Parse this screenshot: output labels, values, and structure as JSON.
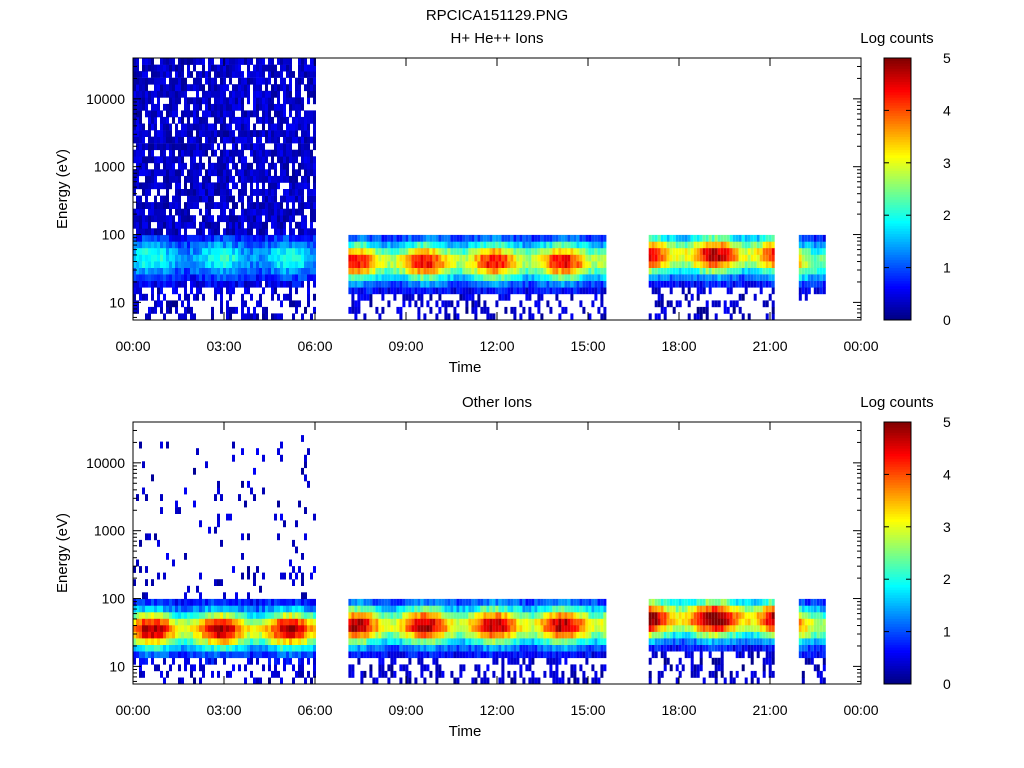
{
  "figure_title": "RPCICA151129.PNG",
  "chart_data": [
    {
      "type": "heatmap",
      "title": "H+ He++ Ions",
      "xlabel": "Time",
      "ylabel": "Energy (eV)",
      "y_scale": "log",
      "ylim": [
        5.5,
        40000
      ],
      "xlim": [
        "00:00",
        "24:00"
      ],
      "x_ticks": [
        "00:00",
        "03:00",
        "06:00",
        "09:00",
        "12:00",
        "15:00",
        "18:00",
        "21:00",
        "00:00"
      ],
      "y_ticks": [
        "10",
        "100",
        "1000",
        "10000"
      ],
      "colorbar": {
        "label": "Log counts",
        "min": 0,
        "max": 5,
        "ticks": [
          "0",
          "1",
          "2",
          "3",
          "4",
          "5"
        ],
        "colormap": "jet"
      },
      "data_segments": [
        {
          "start_hour": 0.0,
          "end_hour": 6.0,
          "energy_range_ev": [
            5.5,
            40000
          ],
          "peak_energy_ev": 45,
          "peak_log_counts": 1.5
        },
        {
          "start_hour": 7.1,
          "end_hour": 15.6,
          "energy_range_ev": [
            6,
            100
          ],
          "peak_energy_ev": 40,
          "peak_log_counts": 3.5
        },
        {
          "start_hour": 17.0,
          "end_hour": 21.1,
          "energy_range_ev": [
            6,
            100
          ],
          "peak_energy_ev": 50,
          "peak_log_counts": 3.8
        },
        {
          "start_hour": 21.95,
          "end_hour": 22.8,
          "energy_range_ev": [
            10,
            100
          ],
          "peak_energy_ev": 40,
          "peak_log_counts": 3.0
        }
      ]
    },
    {
      "type": "heatmap",
      "title": "Other Ions",
      "xlabel": "Time",
      "ylabel": "Energy (eV)",
      "y_scale": "log",
      "ylim": [
        5.5,
        40000
      ],
      "xlim": [
        "00:00",
        "24:00"
      ],
      "x_ticks": [
        "00:00",
        "03:00",
        "06:00",
        "09:00",
        "12:00",
        "15:00",
        "18:00",
        "21:00",
        "00:00"
      ],
      "y_ticks": [
        "10",
        "100",
        "1000",
        "10000"
      ],
      "colorbar": {
        "label": "Log counts",
        "min": 0,
        "max": 5,
        "ticks": [
          "0",
          "1",
          "2",
          "3",
          "4",
          "5"
        ],
        "colormap": "jet"
      },
      "data_segments": [
        {
          "start_hour": 0.0,
          "end_hour": 6.0,
          "energy_range_ev": [
            5.5,
            35000
          ],
          "peak_energy_ev": 35,
          "peak_log_counts": 3.8
        },
        {
          "start_hour": 7.1,
          "end_hour": 15.6,
          "energy_range_ev": [
            6,
            100
          ],
          "peak_energy_ev": 40,
          "peak_log_counts": 3.8
        },
        {
          "start_hour": 17.0,
          "end_hour": 21.1,
          "energy_range_ev": [
            6,
            100
          ],
          "peak_energy_ev": 50,
          "peak_log_counts": 4.2
        },
        {
          "start_hour": 21.95,
          "end_hour": 22.8,
          "energy_range_ev": [
            6,
            100
          ],
          "peak_energy_ev": 40,
          "peak_log_counts": 3.5
        }
      ]
    }
  ]
}
